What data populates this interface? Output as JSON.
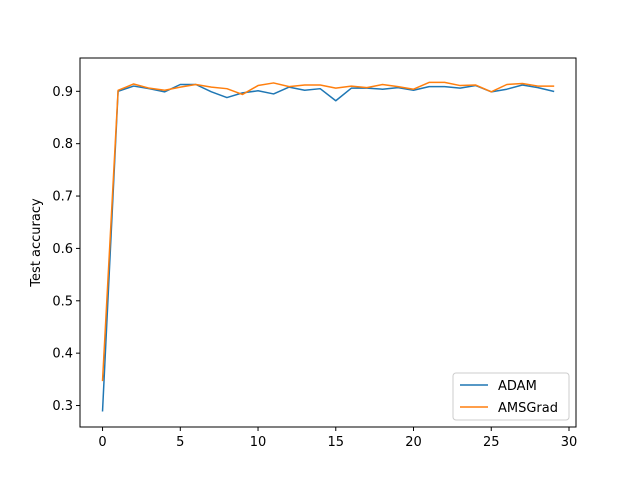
{
  "chart_data": {
    "type": "line",
    "title": "",
    "xlabel": "",
    "ylabel": "Test accuracy",
    "xlim": [
      -1.45,
      30.45
    ],
    "ylim": [
      0.259,
      0.9636
    ],
    "xticks": [
      0,
      5,
      10,
      15,
      20,
      25,
      30
    ],
    "yticks": [
      0.3,
      0.4,
      0.5,
      0.6,
      0.7,
      0.8,
      0.9
    ],
    "grid": false,
    "legend_position": "lower-right",
    "x": [
      0,
      1,
      2,
      3,
      4,
      5,
      6,
      7,
      8,
      9,
      10,
      11,
      12,
      13,
      14,
      15,
      16,
      17,
      18,
      19,
      20,
      21,
      22,
      23,
      24,
      25,
      26,
      27,
      28,
      29
    ],
    "series": [
      {
        "name": "ADAM",
        "color": "#1f77b4",
        "values": [
          0.29,
          0.9,
          0.91,
          0.905,
          0.899,
          0.913,
          0.913,
          0.899,
          0.888,
          0.897,
          0.901,
          0.895,
          0.908,
          0.902,
          0.905,
          0.882,
          0.906,
          0.906,
          0.904,
          0.907,
          0.902,
          0.909,
          0.909,
          0.906,
          0.911,
          0.899,
          0.904,
          0.912,
          0.907,
          0.9
        ]
      },
      {
        "name": "AMSGrad",
        "color": "#ff7f0e",
        "values": [
          0.348,
          0.902,
          0.914,
          0.906,
          0.902,
          0.908,
          0.913,
          0.908,
          0.905,
          0.894,
          0.911,
          0.916,
          0.909,
          0.912,
          0.912,
          0.906,
          0.91,
          0.907,
          0.913,
          0.909,
          0.904,
          0.917,
          0.917,
          0.911,
          0.912,
          0.899,
          0.913,
          0.915,
          0.91,
          0.91
        ]
      }
    ]
  }
}
